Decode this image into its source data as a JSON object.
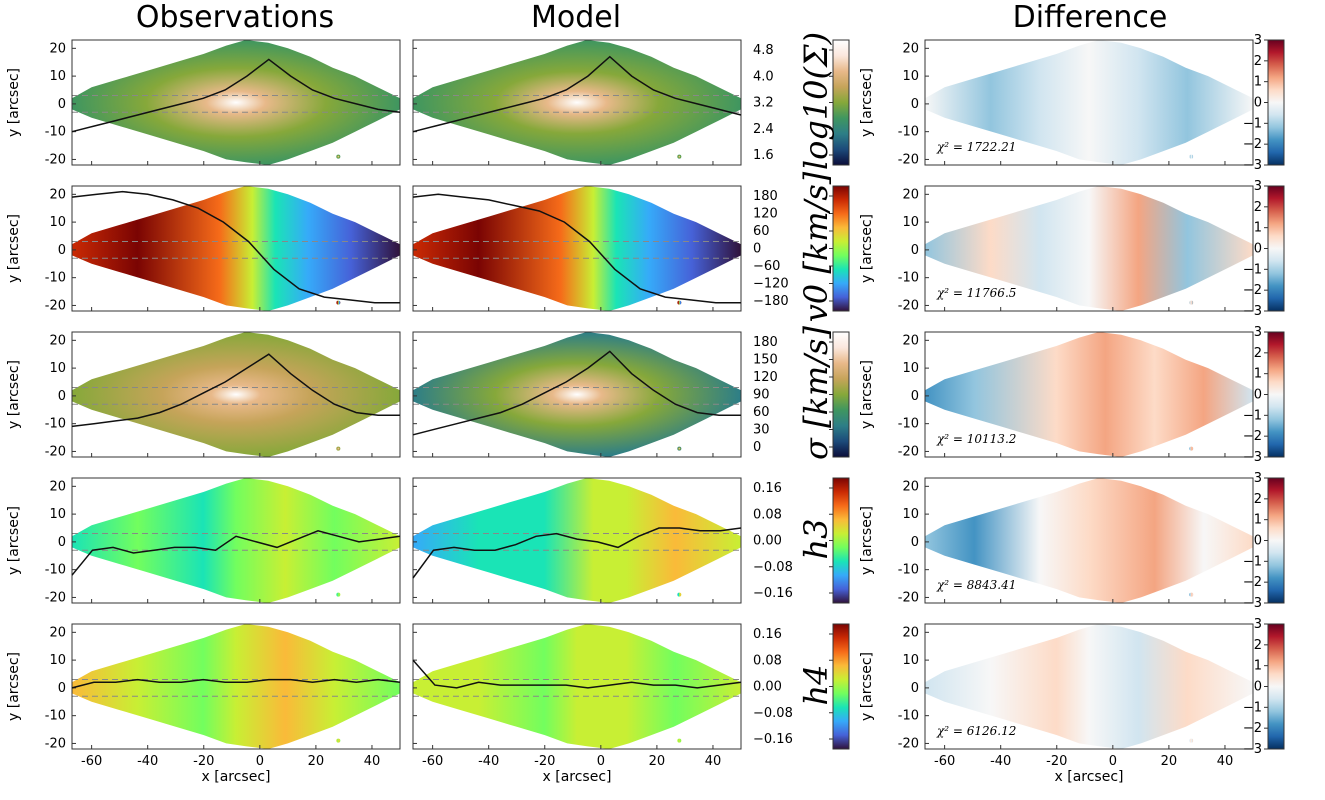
{
  "column_titles": [
    "Observations",
    "Model",
    "Difference"
  ],
  "chart_data": {
    "type": "heatmap",
    "x_axis": {
      "label": "x [arcsec]",
      "ticks": [
        -60,
        -40,
        -20,
        0,
        20,
        40
      ],
      "range": [
        -67,
        50
      ]
    },
    "y_axis": {
      "label": "y [arcsec]",
      "ticks": [
        -20,
        -10,
        0,
        10,
        20
      ],
      "range": [
        -22,
        23
      ]
    },
    "rows": [
      {
        "quantity": "log10(Σ)",
        "colorbar_ticks": [
          "4.8",
          "4.0",
          "3.2",
          "2.4",
          "1.6"
        ],
        "colormap": "gist_earth",
        "chi2": "χ² = 1722.21",
        "profile_obs_y": [
          -10,
          -8,
          -6,
          -4,
          -2,
          0,
          2,
          5,
          10,
          16,
          10,
          5,
          2,
          0,
          -2,
          -3
        ],
        "profile_model_y": [
          -10,
          -8,
          -6,
          -4,
          -2,
          0,
          2,
          5,
          10,
          17,
          10,
          5,
          2,
          0,
          -2,
          -4
        ]
      },
      {
        "quantity": "v0 [km/s]",
        "colorbar_ticks": [
          "180",
          "120",
          "60",
          "0",
          "−60",
          "−120",
          "−180"
        ],
        "colormap": "turbo",
        "chi2": "χ² = 11766.5",
        "profile_obs_y": [
          19,
          20,
          21,
          20,
          18,
          15,
          10,
          3,
          -7,
          -14,
          -17,
          -18,
          -19,
          -19
        ],
        "profile_model_y": [
          19,
          20,
          19,
          18,
          16,
          14,
          10,
          3,
          -7,
          -14,
          -17,
          -18,
          -19,
          -19
        ]
      },
      {
        "quantity": "σ [km/s]",
        "colorbar_ticks": [
          "180",
          "150",
          "120",
          "90",
          "60",
          "30",
          "0"
        ],
        "colormap": "gist_earth",
        "chi2": "χ² = 10113.2",
        "profile_obs_y": [
          -11,
          -10,
          -9,
          -8,
          -6,
          -3,
          1,
          5,
          10,
          15,
          8,
          2,
          -3,
          -6,
          -7,
          -7
        ],
        "profile_model_y": [
          -14,
          -12,
          -10,
          -8,
          -6,
          -3,
          1,
          5,
          10,
          16,
          8,
          2,
          -3,
          -6,
          -7,
          -7
        ]
      },
      {
        "quantity": "h3",
        "colorbar_ticks": [
          "0.16",
          "0.08",
          "0.00",
          "−0.08",
          "−0.16"
        ],
        "colormap": "turbo",
        "chi2": "χ² = 8843.41",
        "profile_obs_y": [
          -12,
          -3,
          -2,
          -4,
          -3,
          -2,
          -2,
          -3,
          2,
          0,
          -2,
          1,
          4,
          2,
          0,
          1,
          2
        ],
        "profile_model_y": [
          -13,
          -3,
          -2,
          -3,
          -3,
          -1,
          2,
          3,
          1,
          0,
          -2,
          2,
          5,
          5,
          4,
          4,
          5
        ]
      },
      {
        "quantity": "h4",
        "colorbar_ticks": [
          "0.16",
          "0.08",
          "0.00",
          "−0.08",
          "−0.16"
        ],
        "colormap": "turbo",
        "chi2": "χ² = 6126.12",
        "profile_obs_y": [
          0,
          2,
          2,
          3,
          2,
          2,
          3,
          2,
          2,
          3,
          3,
          2,
          3,
          2,
          3,
          2
        ],
        "profile_model_y": [
          10,
          1,
          0,
          2,
          1,
          1,
          1,
          1,
          0,
          1,
          2,
          1,
          1,
          0,
          1,
          2
        ]
      }
    ],
    "difference_colorbar_ticks": [
      "3",
      "2",
      "1",
      "0",
      "−1",
      "−2",
      "−3"
    ],
    "grid": false
  },
  "colors": {
    "gist_earth": [
      "#0b0d3a",
      "#1c4a7a",
      "#2d7e87",
      "#3f9660",
      "#86a83a",
      "#c6a45a",
      "#e8b98a",
      "#fbe7dd",
      "#ffffff"
    ],
    "turbo": [
      "#30123b",
      "#4662d8",
      "#36aaf9",
      "#1ae4b6",
      "#72fe5e",
      "#c8ef34",
      "#faba39",
      "#f66b19",
      "#ca2a04",
      "#7a0403"
    ],
    "rdbu": [
      "#053061",
      "#2166ac",
      "#4393c3",
      "#92c5de",
      "#d1e5f0",
      "#f7f7f7",
      "#fddbc7",
      "#f4a582",
      "#d6604d",
      "#b2182b",
      "#67001f"
    ]
  }
}
